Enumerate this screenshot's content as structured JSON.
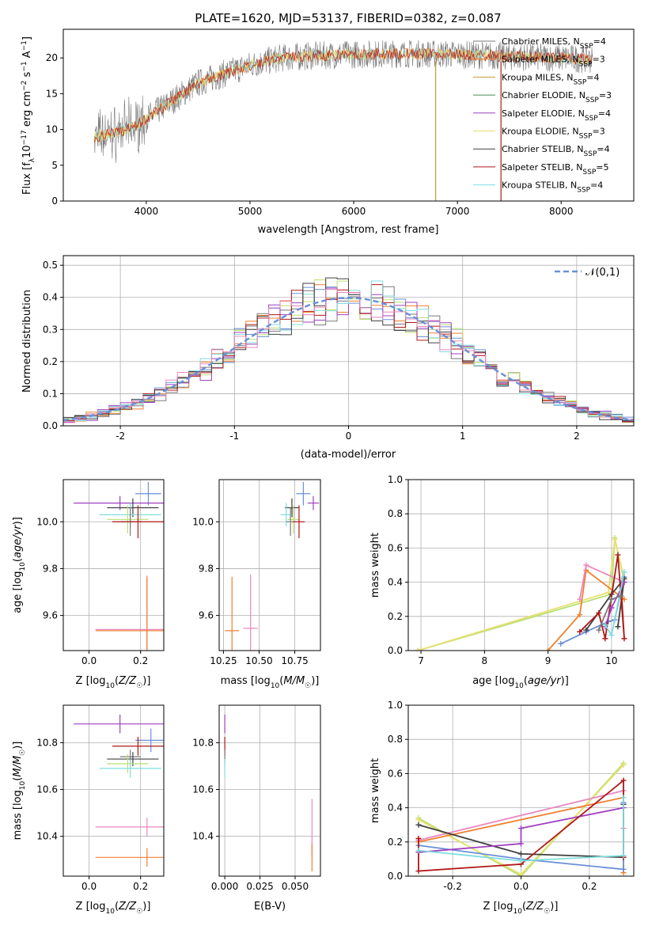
{
  "figure_title": "PLATE=1620, MJD=53137, FIBERID=0382, z=0.087",
  "colors": {
    "Chabrier MILES": "#7a7a7a",
    "Salpeter MILES": "#f08030",
    "Kroupa MILES": "#c89a3c",
    "Chabrier ELODIE": "#4e8a55",
    "Salpeter ELODIE": "#a040c0",
    "Kroupa ELODIE": "#e8e070",
    "Chabrier STELIB": "#404040",
    "Salpeter STELIB": "#b01818",
    "Kroupa STELIB": "#80dede",
    "extra_blue": "#6a8fd8",
    "extra_pink": "#e888c0",
    "extra_lime": "#b8e070",
    "normal_curve": "#6a8fd8"
  },
  "chart_data": [
    {
      "id": "spectrum",
      "type": "line",
      "title": "PLATE=1620, MJD=53137, FIBERID=0382, z=0.087",
      "xlabel": "wavelength [Angstrom, rest frame]",
      "ylabel": "Flux [f_λ 10^-17 erg cm^-2 s^-1 A^-1]",
      "xlim": [
        3200,
        8700
      ],
      "ylim": [
        0,
        24
      ],
      "xticks": [
        4000,
        5000,
        6000,
        7000,
        8000
      ],
      "yticks": [
        0,
        5,
        10,
        15,
        20
      ],
      "grid": false,
      "legend_position": "top-right",
      "x_range_data": [
        3500,
        8300
      ],
      "continuum_x": [
        3500,
        3700,
        3900,
        4000,
        4100,
        4300,
        4500,
        4700,
        5000,
        5300,
        5600,
        6000,
        6500,
        7000,
        7500,
        8000,
        8300
      ],
      "continuum_y": [
        9,
        9.5,
        10.5,
        11.5,
        12.5,
        14.5,
        16.5,
        17.5,
        19,
        20,
        20.3,
        20.5,
        20.6,
        20.5,
        20.2,
        20,
        19.8
      ],
      "model_drops": [
        {
          "x": 6790,
          "series": "Kroupa MILES"
        },
        {
          "x": 7420,
          "series": "Salpeter STELIB"
        }
      ],
      "series": [
        {
          "name": "Chabrier MILES",
          "nssp": "4"
        },
        {
          "name": "Salpeter MILES",
          "nssp": "3"
        },
        {
          "name": "Kroupa MILES",
          "nssp": "4"
        },
        {
          "name": "Chabrier ELODIE",
          "nssp": "3"
        },
        {
          "name": "Salpeter ELODIE",
          "nssp": "4"
        },
        {
          "name": "Kroupa ELODIE",
          "nssp": "3"
        },
        {
          "name": "Chabrier STELIB",
          "nssp": "4"
        },
        {
          "name": "Salpeter STELIB",
          "nssp": "5"
        },
        {
          "name": "Kroupa STELIB",
          "nssp": "4"
        }
      ]
    },
    {
      "id": "residuals",
      "type": "histogram",
      "xlabel": "(data-model)/error",
      "ylabel": "Normed distribution",
      "xlim": [
        -2.5,
        2.5
      ],
      "ylim": [
        0,
        0.53
      ],
      "xticks": [
        -2,
        -1,
        0,
        1,
        2
      ],
      "yticks": [
        0.0,
        0.1,
        0.2,
        0.3,
        0.4,
        0.5
      ],
      "grid": true,
      "legend": "𝒩(0,1)",
      "legend_position": "top-right",
      "bin_width": 0.1,
      "bin_start": -2.5
    },
    {
      "id": "age_vs_Z",
      "type": "errorbar",
      "xlabel": "Z [log10(Z/Z☉)]",
      "ylabel": "age [log10(age/yr)]",
      "xlim": [
        -0.1,
        0.29
      ],
      "ylim": [
        9.45,
        10.18
      ],
      "xticks": [
        0.0,
        0.2
      ],
      "yticks": [
        9.6,
        9.8,
        10.0
      ],
      "grid": true,
      "points": [
        {
          "series": "extra_blue",
          "x": 0.23,
          "y": 10.12,
          "xerr": 0.05,
          "yerr": 0.05
        },
        {
          "series": "Salpeter ELODIE",
          "x": 0.12,
          "y": 10.08,
          "xerr": 0.18,
          "yerr": 0.03
        },
        {
          "series": "Chabrier STELIB",
          "x": 0.17,
          "y": 10.06,
          "xerr": 0.1,
          "yerr": 0.04
        },
        {
          "series": "Kroupa STELIB",
          "x": 0.16,
          "y": 10.03,
          "xerr": 0.12,
          "yerr": 0.05
        },
        {
          "series": "extra_lime",
          "x": 0.15,
          "y": 10.01,
          "xerr": 0.08,
          "yerr": 0.06
        },
        {
          "series": "Chabrier MILES",
          "x": 0.16,
          "y": 10.0,
          "xerr": 0.04,
          "yerr": 0.06
        },
        {
          "series": "Salpeter STELIB",
          "x": 0.19,
          "y": 10.0,
          "xerr": 0.1,
          "yerr": 0.07
        },
        {
          "series": "extra_pink",
          "x": 0.225,
          "y": 9.54,
          "xerr": 0.2,
          "yerr": 0.23
        },
        {
          "series": "Salpeter MILES",
          "x": 0.225,
          "y": 9.535,
          "xerr": 0.2,
          "yerr": 0.23
        }
      ]
    },
    {
      "id": "age_vs_mass",
      "type": "errorbar",
      "xlabel": "mass [log10(M/M☉)]",
      "ylabel": "",
      "xlim": [
        10.22,
        10.93
      ],
      "ylim": [
        9.45,
        10.18
      ],
      "xticks": [
        10.25,
        10.5,
        10.75
      ],
      "yticks": [
        9.6,
        9.8,
        10.0
      ],
      "grid": true,
      "points": [
        {
          "series": "extra_blue",
          "x": 10.81,
          "y": 10.12,
          "xerr": 0.05,
          "yerr": 0.05
        },
        {
          "series": "Salpeter ELODIE",
          "x": 10.88,
          "y": 10.08,
          "xerr": 0.04,
          "yerr": 0.03
        },
        {
          "series": "Chabrier STELIB",
          "x": 10.73,
          "y": 10.06,
          "xerr": 0.05,
          "yerr": 0.04
        },
        {
          "series": "Kroupa STELIB",
          "x": 10.69,
          "y": 10.03,
          "xerr": 0.04,
          "yerr": 0.05
        },
        {
          "series": "extra_lime",
          "x": 10.74,
          "y": 10.01,
          "xerr": 0.04,
          "yerr": 0.06
        },
        {
          "series": "Chabrier MILES",
          "x": 10.72,
          "y": 10.0,
          "xerr": 0.03,
          "yerr": 0.06
        },
        {
          "series": "Salpeter STELIB",
          "x": 10.78,
          "y": 10.0,
          "xerr": 0.04,
          "yerr": 0.07
        },
        {
          "series": "extra_pink",
          "x": 10.44,
          "y": 9.545,
          "xerr": 0.05,
          "yerr": 0.23
        },
        {
          "series": "Salpeter MILES",
          "x": 10.31,
          "y": 9.535,
          "xerr": 0.05,
          "yerr": 0.23
        }
      ]
    },
    {
      "id": "massweight_vs_age",
      "type": "line",
      "xlabel": "age [log10(age/yr)]",
      "ylabel": "mass weight",
      "xlim": [
        6.8,
        10.35
      ],
      "ylim": [
        0,
        1.0
      ],
      "xticks": [
        7,
        8,
        9,
        10
      ],
      "yticks": [
        0.0,
        0.2,
        0.4,
        0.6,
        0.8,
        1.0
      ],
      "grid": true,
      "series": [
        {
          "series": "extra_lime",
          "x": [
            6.95,
            10.0,
            10.05,
            10.2
          ],
          "y": [
            0.0,
            0.33,
            0.66,
            0.4
          ]
        },
        {
          "series": "Kroupa ELODIE",
          "x": [
            6.95,
            9.95,
            10.05,
            10.2
          ],
          "y": [
            0.0,
            0.34,
            0.65,
            0.42
          ]
        },
        {
          "series": "Salpeter MILES",
          "x": [
            9.0,
            9.5,
            9.6,
            10.2
          ],
          "y": [
            0.0,
            0.21,
            0.47,
            0.3
          ]
        },
        {
          "series": "extra_pink",
          "x": [
            9.5,
            9.6,
            10.2
          ],
          "y": [
            0.3,
            0.5,
            0.4
          ]
        },
        {
          "series": "extra_blue",
          "x": [
            9.2,
            9.6,
            9.95,
            10.05,
            10.2
          ],
          "y": [
            0.04,
            0.11,
            0.17,
            0.18,
            0.43
          ]
        },
        {
          "series": "Chabrier STELIB",
          "x": [
            9.6,
            10.0,
            10.2,
            10.1
          ],
          "y": [
            0.12,
            0.33,
            0.42,
            0.14
          ]
        },
        {
          "series": "Salpeter STELIB",
          "x": [
            9.5,
            9.8,
            9.9,
            10.1,
            10.2,
            10.15
          ],
          "y": [
            0.11,
            0.22,
            0.07,
            0.56,
            0.07,
            0.38
          ]
        },
        {
          "series": "Salpeter ELODIE",
          "x": [
            9.9,
            10.0,
            10.2
          ],
          "y": [
            0.14,
            0.25,
            0.4
          ]
        },
        {
          "series": "Kroupa STELIB",
          "x": [
            9.9,
            10.0,
            10.2
          ],
          "y": [
            0.15,
            0.09,
            0.46
          ]
        },
        {
          "series": "Chabrier MILES",
          "x": [
            9.8,
            10.0,
            10.15
          ],
          "y": [
            0.12,
            0.3,
            0.32
          ]
        }
      ]
    },
    {
      "id": "mass_vs_Z",
      "type": "errorbar",
      "xlabel": "Z [log10(Z/Z☉)]",
      "ylabel": "mass [log10(M/M☉)]",
      "xlim": [
        -0.1,
        0.29
      ],
      "ylim": [
        10.23,
        10.96
      ],
      "xticks": [
        0.0,
        0.2
      ],
      "yticks": [
        10.4,
        10.6,
        10.8
      ],
      "grid": true,
      "points": [
        {
          "series": "Salpeter ELODIE",
          "x": 0.12,
          "y": 10.88,
          "xerr": 0.18,
          "yerr": 0.04
        },
        {
          "series": "extra_blue",
          "x": 0.24,
          "y": 10.81,
          "xerr": 0.06,
          "yerr": 0.05
        },
        {
          "series": "Salpeter STELIB",
          "x": 0.19,
          "y": 10.785,
          "xerr": 0.1,
          "yerr": 0.04
        },
        {
          "series": "Chabrier MILES",
          "x": 0.16,
          "y": 10.74,
          "xerr": 0.04,
          "yerr": 0.03
        },
        {
          "series": "Chabrier STELIB",
          "x": 0.17,
          "y": 10.73,
          "xerr": 0.1,
          "yerr": 0.03
        },
        {
          "series": "extra_lime",
          "x": 0.15,
          "y": 10.71,
          "xerr": 0.08,
          "yerr": 0.04
        },
        {
          "series": "Kroupa STELIB",
          "x": 0.16,
          "y": 10.69,
          "xerr": 0.12,
          "yerr": 0.04
        },
        {
          "series": "extra_pink",
          "x": 0.225,
          "y": 10.44,
          "xerr": 0.2,
          "yerr": 0.04
        },
        {
          "series": "Salpeter MILES",
          "x": 0.225,
          "y": 10.31,
          "xerr": 0.2,
          "yerr": 0.04
        }
      ]
    },
    {
      "id": "mass_vs_ebv",
      "type": "errorbar",
      "xlabel": "E(B-V)",
      "ylabel": "",
      "xlim": [
        -0.004,
        0.068
      ],
      "ylim": [
        10.23,
        10.96
      ],
      "xticks": [
        0.0,
        0.025,
        0.05
      ],
      "yticks": [
        10.4,
        10.6,
        10.8
      ],
      "grid": true,
      "points": [
        {
          "series": "Salpeter ELODIE",
          "x": 0.0,
          "y": 10.88,
          "xerr": 0.0,
          "yerr": 0.04
        },
        {
          "series": "Salpeter STELIB",
          "x": 0.0,
          "y": 10.785,
          "xerr": 0.0,
          "yerr": 0.04
        },
        {
          "series": "Chabrier MILES",
          "x": 0.0,
          "y": 10.74,
          "xerr": 0.0,
          "yerr": 0.03
        },
        {
          "series": "Kroupa STELIB",
          "x": 0.0,
          "y": 10.69,
          "xerr": 0.0,
          "yerr": 0.04
        },
        {
          "series": "extra_pink",
          "x": 0.062,
          "y": 10.44,
          "xerr": 0.0,
          "yerr": 0.12
        },
        {
          "series": "Salpeter MILES",
          "x": 0.062,
          "y": 10.31,
          "xerr": 0.0,
          "yerr": 0.06
        }
      ]
    },
    {
      "id": "massweight_vs_Z",
      "type": "line",
      "xlabel": "Z [log10(Z/Z☉)]",
      "ylabel": "mass weight",
      "xlim": [
        -0.33,
        0.33
      ],
      "ylim": [
        0,
        1.0
      ],
      "xticks": [
        -0.2,
        0.0,
        0.2
      ],
      "yticks": [
        0.0,
        0.2,
        0.4,
        0.6,
        0.8,
        1.0
      ],
      "grid": true,
      "series": [
        {
          "series": "extra_lime",
          "x": [
            -0.3,
            0.0,
            0.3
          ],
          "y": [
            0.34,
            0.0,
            0.66
          ]
        },
        {
          "series": "Kroupa ELODIE",
          "x": [
            -0.3,
            0.0,
            0.3
          ],
          "y": [
            0.33,
            0.01,
            0.65
          ]
        },
        {
          "series": "extra_pink",
          "x": [
            -0.3,
            0.3,
            0.3
          ],
          "y": [
            0.21,
            0.5,
            0.28
          ]
        },
        {
          "series": "Salpeter MILES",
          "x": [
            -0.3,
            -0.3,
            0.3,
            0.3
          ],
          "y": [
            0.22,
            0.2,
            0.46,
            0.02
          ]
        },
        {
          "series": "Chabrier STELIB",
          "x": [
            -0.3,
            0.0,
            0.3,
            0.3
          ],
          "y": [
            0.3,
            0.13,
            0.11,
            0.42
          ]
        },
        {
          "series": "extra_blue",
          "x": [
            -0.3,
            0.0,
            0.3,
            0.3
          ],
          "y": [
            0.18,
            0.1,
            0.04,
            0.43
          ]
        },
        {
          "series": "Salpeter ELODIE",
          "x": [
            -0.3,
            0.0,
            0.0,
            0.3,
            0.3
          ],
          "y": [
            0.14,
            0.19,
            0.28,
            0.4,
            0.12
          ]
        },
        {
          "series": "Salpeter STELIB",
          "x": [
            -0.3,
            -0.3,
            0.0,
            0.3,
            0.3
          ],
          "y": [
            0.22,
            0.03,
            0.07,
            0.56,
            0.11
          ]
        },
        {
          "series": "Kroupa STELIB",
          "x": [
            -0.3,
            0.0,
            0.3,
            0.3
          ],
          "y": [
            0.15,
            0.09,
            0.12,
            0.46
          ]
        }
      ]
    }
  ]
}
